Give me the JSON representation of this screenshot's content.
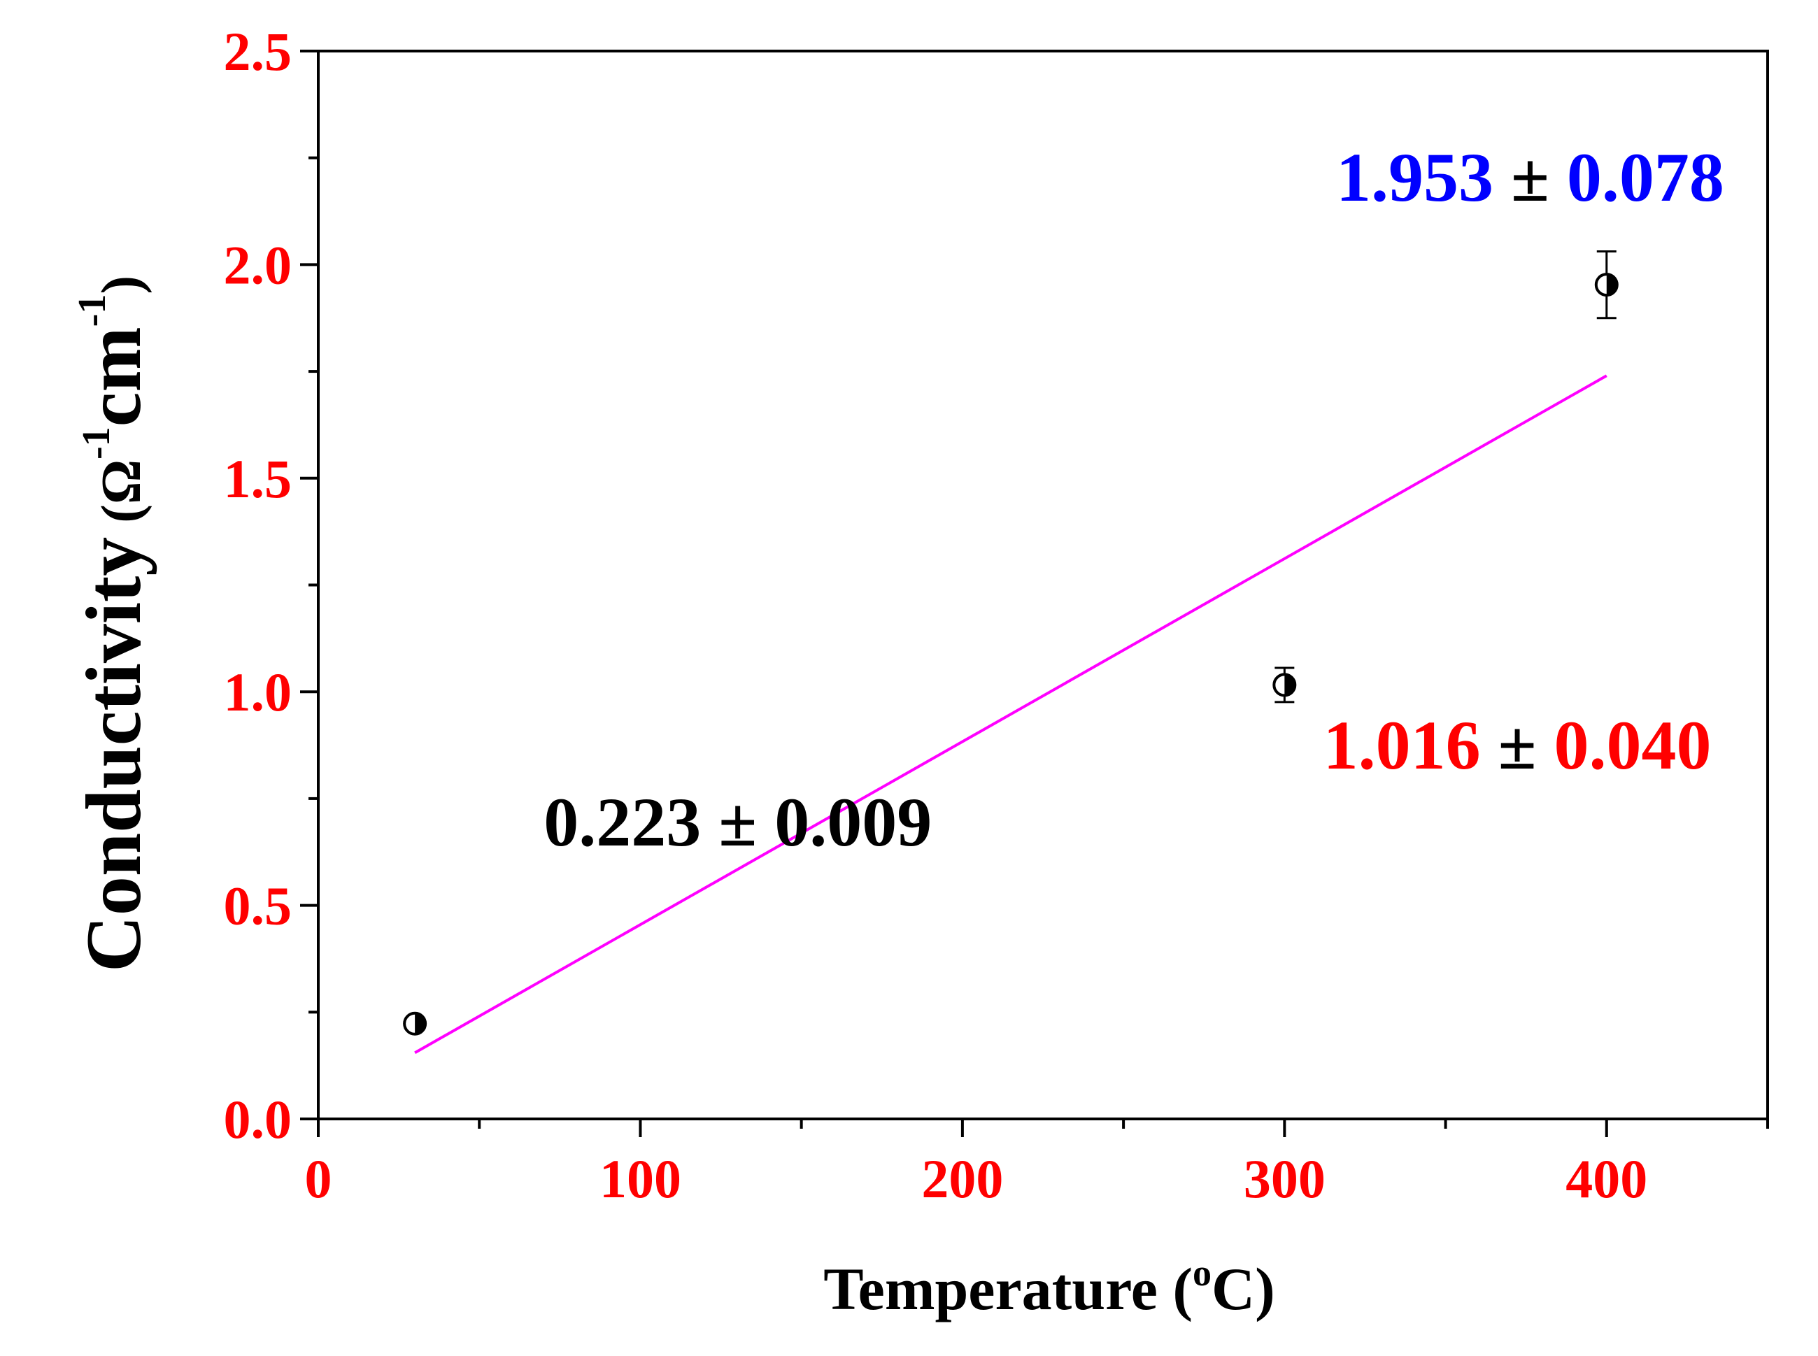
{
  "chart_data": {
    "type": "scatter",
    "title": "",
    "xlabel": "Temperature",
    "xlabel_unit_sup": "o",
    "xlabel_unit": "C",
    "ylabel": "Conductivity",
    "ylabel_unit_parts": [
      "Ω",
      "-1",
      "cm",
      "-1"
    ],
    "xlim": [
      0,
      450
    ],
    "ylim": [
      0,
      2.5
    ],
    "x_major_ticks": [
      0,
      100,
      200,
      300,
      400
    ],
    "x_minor_ticks": [
      50,
      150,
      250,
      350,
      450
    ],
    "x_tick_labels": [
      "0",
      "100",
      "200",
      "300",
      "400"
    ],
    "y_major_ticks": [
      0,
      0.5,
      1.0,
      1.5,
      2.0,
      2.5
    ],
    "y_minor_ticks": [
      0.25,
      0.75,
      1.25,
      1.75,
      2.25
    ],
    "y_tick_labels": [
      "0.0",
      "0.5",
      "1.0",
      "1.5",
      "2.0",
      "2.5"
    ],
    "grid": false,
    "series": [
      {
        "name": "Conductivity",
        "x": [
          30,
          300,
          400
        ],
        "y": [
          0.223,
          1.016,
          1.953
        ],
        "yerr": [
          0.009,
          0.04,
          0.078
        ],
        "marker": "half-filled-circle"
      }
    ],
    "fit_line": {
      "x": [
        30,
        400
      ],
      "y": [
        0.155,
        1.74
      ],
      "color": "#ff00ff"
    },
    "annotations": [
      {
        "text_value": "0.223",
        "pm": "±",
        "text_err": "0.009",
        "x": 70,
        "y": 0.64,
        "color_value": "#000000",
        "color_pm": "#000000",
        "color_err": "#000000"
      },
      {
        "text_value": "1.016",
        "pm": "±",
        "text_err": "0.040",
        "x": 312,
        "y": 0.82,
        "color_value": "#ff0000",
        "color_pm": "#000000",
        "color_err": "#ff0000"
      },
      {
        "text_value": "1.953",
        "pm": "±",
        "text_err": "0.078",
        "x": 316,
        "y": 2.15,
        "color_value": "#0000ff",
        "color_pm": "#000000",
        "color_err": "#0000ff"
      }
    ]
  }
}
